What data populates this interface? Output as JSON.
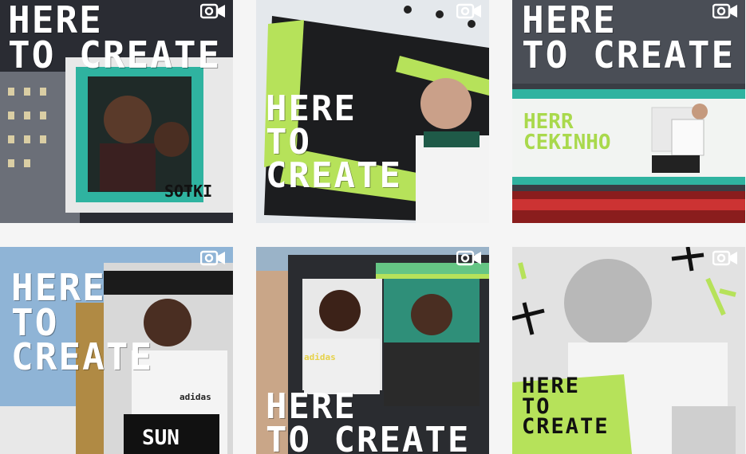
{
  "colors": {
    "lime": "#b6e25a",
    "teal": "#2fb3a0",
    "dark": "#1f1f1f"
  },
  "tiles": [
    {
      "media_icon": "video-camera-icon",
      "headline": "HERE\nTO CREATE",
      "sign": "SOTKI"
    },
    {
      "media_icon": "video-camera-icon",
      "headline": "HERE\nTO\nCREATE"
    },
    {
      "media_icon": "video-camera-icon",
      "headline": "HERE\nTO CREATE",
      "billboard_text": "HERR\nCEKINHO"
    },
    {
      "media_icon": "video-camera-icon",
      "headline": "HERE\nTO\nCREATE",
      "shirt_brand": "adidas",
      "board_text": "SUN"
    },
    {
      "media_icon": "video-camera-icon",
      "headline": "HERE\nTO CREATE",
      "shirt_brand": "adidas"
    },
    {
      "media_icon": "video-camera-icon",
      "headline": "HERE\nTO\nCREATE"
    }
  ]
}
